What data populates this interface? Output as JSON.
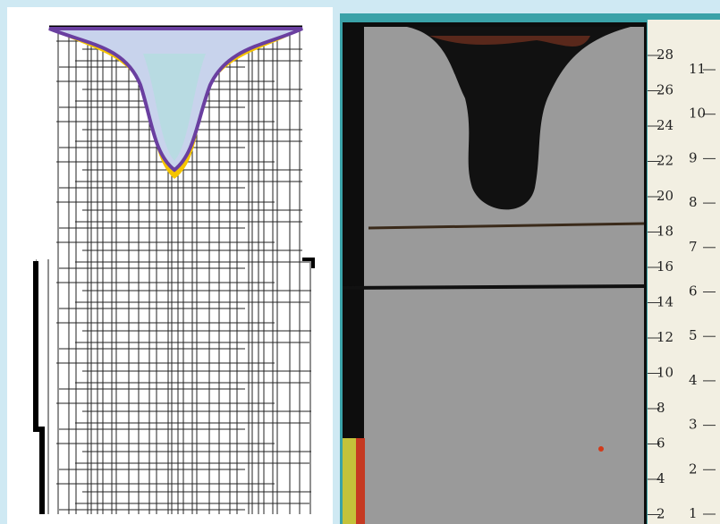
{
  "ruler": {
    "left_marks": [
      "28",
      "26",
      "24",
      "22",
      "20",
      "18",
      "16",
      "14",
      "12",
      "10",
      "8",
      "6",
      "4",
      "2"
    ],
    "right_marks": [
      "11",
      "10",
      "9",
      "8",
      "7",
      "6",
      "5",
      "4",
      "3",
      "2",
      "1"
    ]
  }
}
